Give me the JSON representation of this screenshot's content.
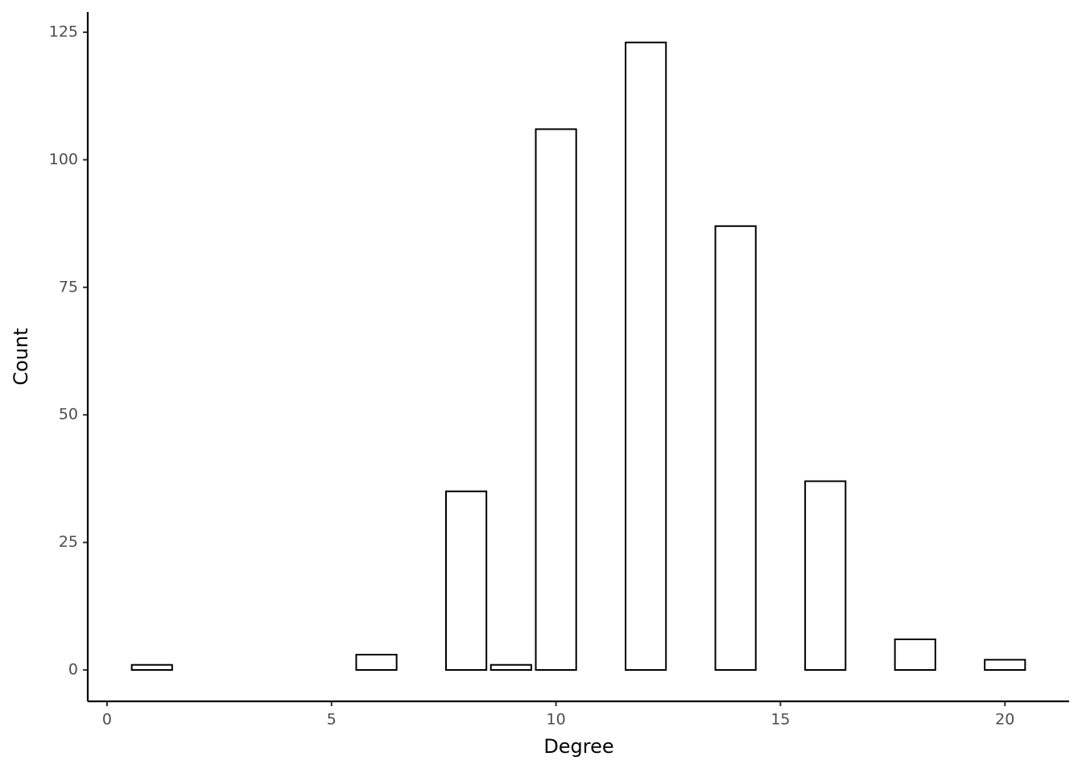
{
  "chart_data": {
    "type": "bar",
    "x_label": "Degree",
    "y_label": "Count",
    "x": [
      1,
      6,
      8,
      9,
      10,
      12,
      14,
      16,
      18,
      20
    ],
    "values": [
      1,
      3,
      35,
      1,
      106,
      123,
      87,
      37,
      6,
      2
    ],
    "color": "#ffffff",
    "edge_color": "#000000",
    "xlim": [
      -0.43,
      21.43
    ],
    "ylim": [
      -6.15,
      128.95
    ],
    "xticks": [
      0,
      5,
      10,
      15,
      20
    ],
    "yticks": [
      0,
      25,
      50,
      75,
      100,
      125
    ],
    "grid": false
  }
}
